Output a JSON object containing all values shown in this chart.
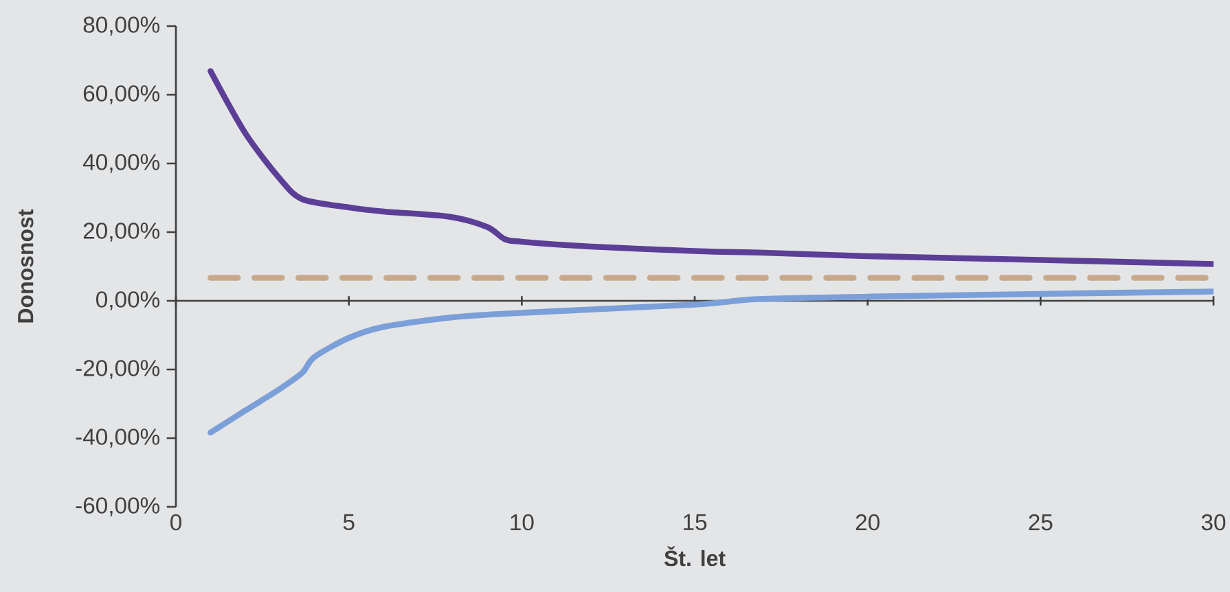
{
  "chart_data": {
    "type": "line",
    "xlabel": "Št. let",
    "ylabel": "Donosnost",
    "xlim": [
      0,
      30
    ],
    "xticks": [
      0,
      5,
      10,
      15,
      20,
      25,
      30
    ],
    "ylim": [
      -60,
      80
    ],
    "yticks": [
      {
        "value": -60,
        "label": "-60,00%"
      },
      {
        "value": -40,
        "label": "-40,00%"
      },
      {
        "value": -20,
        "label": "-20,00%"
      },
      {
        "value": 0,
        "label": "0,00%"
      },
      {
        "value": 20,
        "label": "20,00%"
      },
      {
        "value": 40,
        "label": "40,00%"
      },
      {
        "value": 60,
        "label": "60,00%"
      },
      {
        "value": 80,
        "label": "80,00%"
      }
    ],
    "series": [
      {
        "color": "#5b3f97",
        "line_style": "solid",
        "x": [
          1,
          2,
          3,
          3.65,
          5,
          6,
          7.9,
          9,
          9.5,
          10,
          12,
          15,
          17,
          20,
          25,
          30
        ],
        "values": [
          66.9,
          48.9,
          35.6,
          29.6,
          27.2,
          26,
          24.5,
          21.5,
          18,
          17.2,
          15.8,
          14.5,
          14,
          13,
          11.9,
          10.7
        ]
      },
      {
        "color": "#c9a98a",
        "line_style": "dashed",
        "x": [
          1,
          30
        ],
        "values": [
          6.7,
          6.7
        ]
      },
      {
        "color": "#7b9fd8",
        "line_style": "solid",
        "x": [
          1,
          2,
          3,
          3.65,
          4,
          5,
          6,
          8,
          10,
          15,
          16.8,
          20,
          25,
          30
        ],
        "values": [
          -38.4,
          -32,
          -25.7,
          -21,
          -16.4,
          -10.8,
          -7.6,
          -4.8,
          -3.5,
          -1.1,
          0.5,
          1.2,
          2,
          2.7
        ]
      }
    ]
  }
}
